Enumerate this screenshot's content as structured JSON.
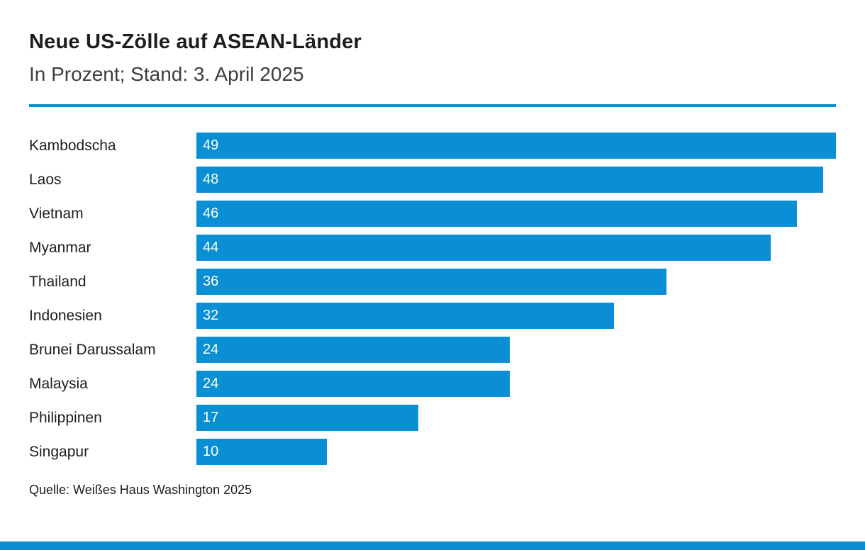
{
  "header": {
    "title": "Neue US-Zölle auf ASEAN-Länder",
    "subtitle": "In Prozent; Stand: 3. April 2025"
  },
  "footer": {
    "source": "Quelle: Weißes Haus Washington 2025"
  },
  "colors": {
    "bar": "#0a8ed4",
    "accent_line": "#0a8ed4",
    "title_text": "#1d1d1b",
    "subtitle_text": "#3e3e3e",
    "value_text": "#ffffff"
  },
  "chart_data": {
    "type": "bar",
    "orientation": "horizontal",
    "title": "Neue US-Zölle auf ASEAN-Länder",
    "subtitle": "In Prozent; Stand: 3. April 2025",
    "categories": [
      "Kambodscha",
      "Laos",
      "Vietnam",
      "Myanmar",
      "Thailand",
      "Indonesien",
      "Brunei Darussalam",
      "Malaysia",
      "Philippinen",
      "Singapur"
    ],
    "values": [
      49,
      48,
      46,
      44,
      36,
      32,
      24,
      24,
      17,
      10
    ],
    "xlabel": "",
    "ylabel": "",
    "xlim": [
      0,
      49
    ],
    "unit": "percent",
    "grid": false,
    "legend": false,
    "value_labels": "inside-left-white",
    "source": "Quelle: Weißes Haus Washington 2025"
  }
}
